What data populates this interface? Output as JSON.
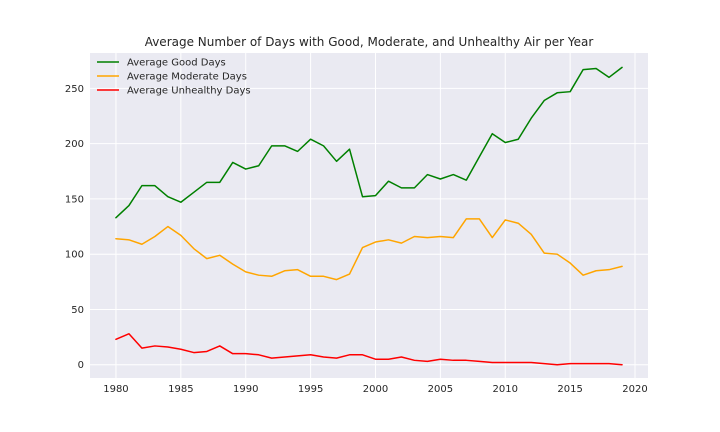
{
  "chart_data": {
    "type": "line",
    "title": "Average Number of Days with Good, Moderate, and Unhealthy Air per Year",
    "xlabel": "",
    "ylabel": "",
    "x": [
      1980,
      1981,
      1982,
      1983,
      1984,
      1985,
      1986,
      1987,
      1988,
      1989,
      1990,
      1991,
      1992,
      1993,
      1994,
      1995,
      1996,
      1997,
      1998,
      1999,
      2000,
      2001,
      2002,
      2003,
      2004,
      2005,
      2006,
      2007,
      2008,
      2009,
      2010,
      2011,
      2012,
      2013,
      2014,
      2015,
      2016,
      2017,
      2018,
      2019
    ],
    "xlim": [
      1978,
      2021
    ],
    "ylim": [
      -12,
      282
    ],
    "xticks": [
      1980,
      1985,
      1990,
      1995,
      2000,
      2005,
      2010,
      2015,
      2020
    ],
    "yticks": [
      0,
      50,
      100,
      150,
      200,
      250
    ],
    "xtick_labels": [
      "1980",
      "1985",
      "1990",
      "1995",
      "2000",
      "2005",
      "2010",
      "2015",
      "2020"
    ],
    "ytick_labels": [
      "0",
      "50",
      "100",
      "150",
      "200",
      "250"
    ],
    "grid": true,
    "legend_position": "top-left",
    "series": [
      {
        "name": "Average Good Days",
        "color": "#008000",
        "values": [
          133,
          144,
          162,
          162,
          152,
          147,
          156,
          165,
          165,
          183,
          177,
          180,
          198,
          198,
          193,
          204,
          198,
          184,
          195,
          152,
          153,
          166,
          160,
          160,
          172,
          168,
          172,
          167,
          188,
          209,
          201,
          204,
          223,
          239,
          246,
          247,
          267,
          268,
          260,
          269
        ]
      },
      {
        "name": "Average Moderate Days",
        "color": "#FFA500",
        "values": [
          114,
          113,
          109,
          116,
          125,
          117,
          105,
          96,
          99,
          91,
          84,
          81,
          80,
          85,
          86,
          80,
          80,
          77,
          82,
          106,
          111,
          113,
          110,
          116,
          115,
          116,
          115,
          132,
          132,
          115,
          131,
          128,
          118,
          101,
          100,
          92,
          81,
          85,
          86,
          89
        ]
      },
      {
        "name": "Average Unhealthy Days",
        "color": "#FF0000",
        "values": [
          23,
          28,
          15,
          17,
          16,
          14,
          11,
          12,
          17,
          10,
          10,
          9,
          6,
          7,
          8,
          9,
          7,
          6,
          9,
          9,
          5,
          5,
          7,
          4,
          3,
          5,
          4,
          4,
          3,
          2,
          2,
          2,
          2,
          1,
          0,
          1,
          1,
          1,
          1,
          0
        ]
      }
    ]
  }
}
